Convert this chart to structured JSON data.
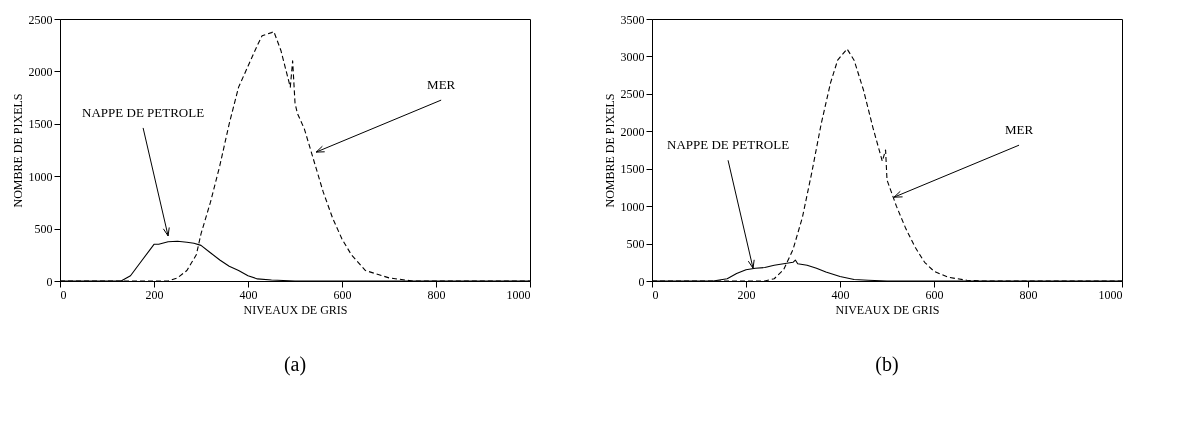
{
  "chart_data": [
    {
      "type": "line",
      "xlabel": "NIVEAUX DE GRIS",
      "ylabel": "NOMBRE DE PIXELS",
      "xlim": [
        0,
        1000
      ],
      "ylim": [
        0,
        2500
      ],
      "xticks": [
        0,
        200,
        400,
        600,
        800,
        1000
      ],
      "yticks": [
        0,
        500,
        1000,
        1500,
        2000,
        2500
      ],
      "grid": false,
      "legend": false,
      "marker": "none",
      "series": [
        {
          "color": "#000000",
          "line_style": "solid",
          "x": [
            0,
            130,
            150,
            175,
            200,
            210,
            230,
            250,
            270,
            285,
            300,
            320,
            340,
            360,
            380,
            400,
            420,
            450,
            500,
            600,
            1000
          ],
          "values": [
            0,
            0,
            50,
            200,
            350,
            350,
            375,
            380,
            370,
            360,
            340,
            270,
            200,
            140,
            100,
            50,
            20,
            10,
            0,
            0,
            0
          ]
        },
        {
          "color": "#000000",
          "line_style": "dashed",
          "x": [
            0,
            230,
            250,
            270,
            290,
            300,
            320,
            340,
            360,
            380,
            400,
            420,
            430,
            450,
            455,
            470,
            490,
            495,
            500,
            505,
            520,
            540,
            560,
            580,
            600,
            620,
            650,
            700,
            750,
            800,
            1000
          ],
          "values": [
            0,
            0,
            30,
            100,
            250,
            450,
            750,
            1100,
            1500,
            1850,
            2050,
            2250,
            2340,
            2370,
            2380,
            2200,
            1850,
            2100,
            1700,
            1600,
            1450,
            1150,
            850,
            600,
            400,
            250,
            100,
            30,
            0,
            0,
            0
          ]
        }
      ],
      "annotations": [
        {
          "text": "NAPPE DE PETROLE",
          "x": 230,
          "y": 430
        },
        {
          "text": "MER",
          "x": 545,
          "y": 1230
        },
        "(a)"
      ]
    },
    {
      "type": "line",
      "xlabel": "NIVEAUX DE GRIS",
      "ylabel": "NOMBRE DE PIXELS",
      "xlim": [
        0,
        1000
      ],
      "ylim": [
        0,
        3500
      ],
      "xticks": [
        0,
        200,
        400,
        600,
        800,
        1000
      ],
      "yticks": [
        0,
        500,
        1000,
        1500,
        2000,
        2500,
        3000,
        3500
      ],
      "grid": false,
      "legend": false,
      "marker": "none",
      "series": [
        {
          "color": "#000000",
          "line_style": "solid",
          "x": [
            0,
            130,
            160,
            180,
            200,
            220,
            240,
            260,
            280,
            300,
            305,
            310,
            330,
            350,
            370,
            400,
            430,
            460,
            500,
            1000
          ],
          "values": [
            0,
            0,
            30,
            100,
            150,
            170,
            180,
            210,
            230,
            250,
            280,
            230,
            210,
            170,
            120,
            60,
            20,
            10,
            0,
            0
          ]
        },
        {
          "color": "#000000",
          "line_style": "dashed",
          "x": [
            0,
            240,
            260,
            280,
            300,
            320,
            340,
            360,
            380,
            395,
            415,
            430,
            450,
            470,
            490,
            497,
            500,
            520,
            540,
            560,
            580,
            600,
            630,
            670,
            700,
            1000
          ],
          "values": [
            0,
            0,
            30,
            150,
            420,
            850,
            1450,
            2100,
            2650,
            2950,
            3100,
            2950,
            2550,
            2050,
            1600,
            1750,
            1350,
            1000,
            700,
            450,
            250,
            130,
            50,
            10,
            0,
            0
          ]
        }
      ],
      "annotations": [
        {
          "text": "NAPPE DE PETROLE",
          "x": 215,
          "y": 170
        },
        {
          "text": "MER",
          "x": 515,
          "y": 1120
        },
        "(b)"
      ]
    }
  ]
}
